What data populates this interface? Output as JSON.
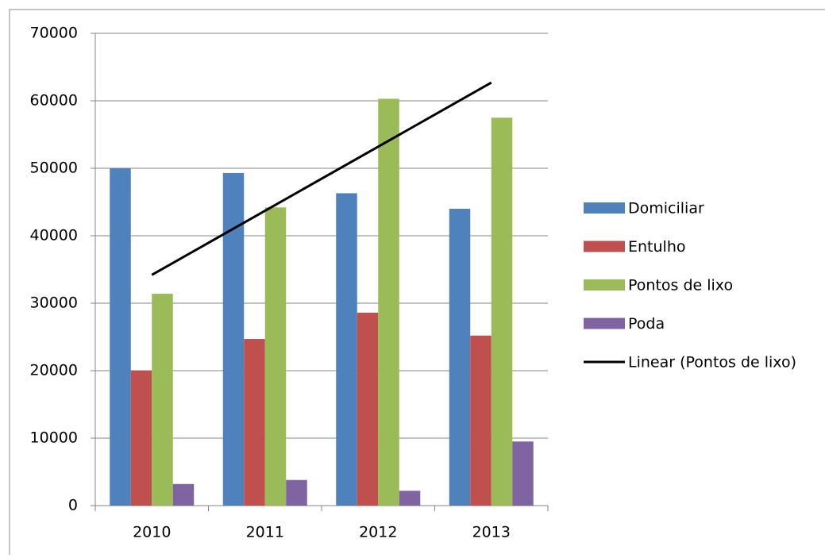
{
  "chart_data": {
    "type": "bar",
    "categories": [
      "2010",
      "2011",
      "2012",
      "2013"
    ],
    "series": [
      {
        "name": "Domiciliar",
        "color": "#4f81bd",
        "values": [
          50000,
          49300,
          46300,
          44000
        ]
      },
      {
        "name": "Entulho",
        "color": "#c0504d",
        "values": [
          20000,
          24700,
          28600,
          25200
        ]
      },
      {
        "name": "Pontos de lixo",
        "color": "#9bbb59",
        "values": [
          31400,
          44200,
          60300,
          57500
        ]
      },
      {
        "name": "Poda",
        "color": "#8064a2",
        "values": [
          3200,
          3800,
          2200,
          9500
        ]
      },
      {
        "name": "Linear (Pontos de lixo)",
        "color": "#000000",
        "type": "line",
        "values": [
          34200,
          43700,
          53200,
          62700
        ]
      }
    ],
    "ylim": [
      0,
      70000
    ],
    "yticks": [
      0,
      10000,
      20000,
      30000,
      40000,
      50000,
      60000,
      70000
    ],
    "grid": true,
    "legend": "right"
  }
}
